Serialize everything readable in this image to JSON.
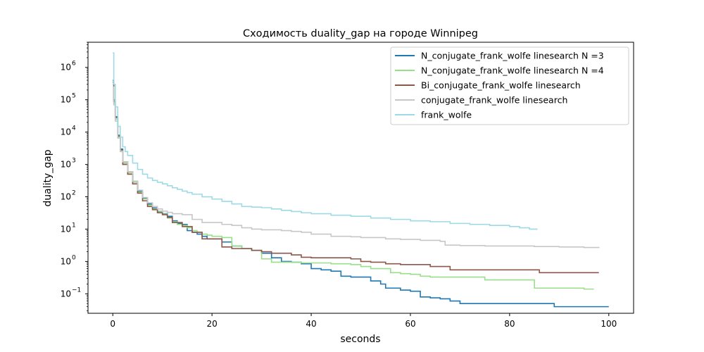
{
  "chart_data": {
    "type": "line",
    "title": "Сходимость duality_gap на городе Winnipeg",
    "xlabel": "seconds",
    "ylabel": "duality_gap",
    "x_scale": "linear",
    "y_scale": "log",
    "xlim": [
      -5,
      105
    ],
    "ylim": [
      0.025,
      6000000
    ],
    "xticks": [
      0,
      20,
      40,
      60,
      80,
      100
    ],
    "yticks": [
      {
        "value": 0.1,
        "mantissa": "10",
        "exp": "−1"
      },
      {
        "value": 1,
        "mantissa": "10",
        "exp": "0"
      },
      {
        "value": 10,
        "mantissa": "10",
        "exp": "1"
      },
      {
        "value": 100,
        "mantissa": "10",
        "exp": "2"
      },
      {
        "value": 1000,
        "mantissa": "10",
        "exp": "3"
      },
      {
        "value": 10000,
        "mantissa": "10",
        "exp": "4"
      },
      {
        "value": 100000,
        "mantissa": "10",
        "exp": "5"
      },
      {
        "value": 1000000,
        "mantissa": "10",
        "exp": "6"
      }
    ],
    "grid": false,
    "legend_position": "top-right",
    "series": [
      {
        "name": "N_conjugate_frank_wolfe linesearch N =3",
        "color": "#1f77b4",
        "x": [
          0,
          0.2,
          0.5,
          1,
          1.5,
          2,
          3,
          4,
          5,
          6,
          7,
          8,
          9,
          10,
          11,
          12,
          13,
          14,
          15,
          16,
          17,
          18,
          19,
          20,
          22,
          24,
          26,
          28,
          30,
          32,
          34,
          36,
          38,
          40,
          42,
          44,
          46,
          48,
          50,
          52,
          54,
          55,
          56,
          58,
          60,
          62,
          64,
          66,
          68,
          70,
          72,
          75,
          80,
          85,
          89,
          92,
          95,
          100
        ],
        "y": [
          400000,
          100000,
          30000,
          8000,
          3000,
          1200,
          600,
          300,
          150,
          90,
          60,
          45,
          35,
          30,
          25,
          18,
          15,
          14,
          9,
          8,
          7,
          6,
          5,
          5,
          4,
          3,
          2.5,
          2.2,
          1.8,
          1.3,
          1.0,
          0.95,
          0.85,
          0.6,
          0.55,
          0.5,
          0.35,
          0.33,
          0.33,
          0.25,
          0.2,
          0.15,
          0.15,
          0.13,
          0.12,
          0.08,
          0.075,
          0.07,
          0.06,
          0.05,
          0.05,
          0.05,
          0.05,
          0.05,
          0.04,
          0.04,
          0.04,
          0.04
        ]
      },
      {
        "name": "N_conjugate_frank_wolfe linesearch N =4",
        "color": "#98df8a",
        "x": [
          0,
          0.2,
          0.5,
          1,
          1.5,
          2,
          3,
          4,
          5,
          6,
          7,
          8,
          9,
          10,
          11,
          12,
          13,
          14,
          15,
          16,
          17,
          18,
          19,
          20,
          22,
          24,
          26,
          28,
          30,
          32,
          34,
          36,
          38,
          40,
          44,
          48,
          50,
          52,
          54,
          56,
          58,
          60,
          62,
          64,
          66,
          68,
          70,
          72,
          75,
          80,
          85,
          90,
          92,
          95,
          97
        ],
        "y": [
          300000,
          80000,
          25000,
          7000,
          2500,
          1100,
          550,
          280,
          140,
          85,
          55,
          42,
          34,
          29,
          22,
          17,
          14,
          13,
          11,
          9,
          8,
          7,
          6.5,
          6,
          5.5,
          3,
          2.5,
          2.2,
          1.2,
          0.95,
          0.95,
          0.95,
          0.9,
          0.9,
          0.85,
          0.8,
          0.7,
          0.6,
          0.6,
          0.45,
          0.42,
          0.4,
          0.35,
          0.33,
          0.33,
          0.33,
          0.33,
          0.33,
          0.27,
          0.27,
          0.15,
          0.15,
          0.15,
          0.14,
          0.14
        ]
      },
      {
        "name": "Bi_conjugate_frank_wolfe linesearch",
        "color": "#8c564b",
        "x": [
          0,
          0.2,
          0.5,
          1,
          1.5,
          2,
          3,
          4,
          5,
          6,
          7,
          8,
          9,
          10,
          11,
          12,
          14,
          16,
          18,
          20,
          22,
          24,
          26,
          28,
          30,
          32,
          34,
          36,
          38,
          40,
          44,
          48,
          50,
          52,
          55,
          58,
          62,
          64,
          66,
          68,
          72,
          75,
          80,
          85,
          86,
          90,
          95,
          98
        ],
        "y": [
          350000,
          90000,
          28000,
          7500,
          2800,
          1000,
          500,
          250,
          130,
          75,
          50,
          40,
          32,
          28,
          23,
          16,
          12,
          8,
          5,
          5,
          2.8,
          2.5,
          2.5,
          2.2,
          2.0,
          1.8,
          1.8,
          1.6,
          1.35,
          1.3,
          1.3,
          1.2,
          1.0,
          0.95,
          0.85,
          0.8,
          0.8,
          0.7,
          0.7,
          0.55,
          0.55,
          0.55,
          0.55,
          0.55,
          0.45,
          0.45,
          0.45,
          0.45
        ]
      },
      {
        "name": "conjugate_frank_wolfe linesearch",
        "color": "#c7c7c7",
        "x": [
          0,
          0.2,
          0.5,
          1,
          1.5,
          2,
          3,
          4,
          5,
          6,
          7,
          8,
          9,
          10,
          11,
          12,
          14,
          16,
          18,
          20,
          22,
          24,
          26,
          28,
          30,
          32,
          34,
          36,
          38,
          40,
          44,
          48,
          50,
          52,
          55,
          58,
          62,
          64,
          66,
          67,
          70,
          75,
          80,
          85,
          90,
          95,
          98
        ],
        "y": [
          250000,
          70000,
          22000,
          6500,
          2600,
          1200,
          600,
          300,
          160,
          95,
          65,
          50,
          42,
          36,
          33,
          30,
          28,
          20,
          16,
          16,
          14,
          13,
          11,
          10,
          9.5,
          9.5,
          9.0,
          8.5,
          8.0,
          7.0,
          6.0,
          5.8,
          5.5,
          5.5,
          5.0,
          4.8,
          4.5,
          4.5,
          4.2,
          3.2,
          3.1,
          3.0,
          3.0,
          2.9,
          2.8,
          2.7,
          2.6
        ]
      },
      {
        "name": "frank_wolfe",
        "color": "#9edae5",
        "x": [
          0,
          0.2,
          0.5,
          1,
          1.5,
          2,
          2.5,
          3,
          4,
          5,
          6,
          7,
          8,
          9,
          10,
          11,
          12,
          13,
          14,
          15,
          16,
          18,
          20,
          22,
          24,
          26,
          28,
          30,
          32,
          34,
          36,
          38,
          40,
          44,
          48,
          52,
          56,
          60,
          64,
          68,
          72,
          76,
          80,
          82,
          84,
          85.5
        ],
        "y": [
          2800000,
          300000,
          60000,
          15000,
          7000,
          3500,
          2500,
          1900,
          1100,
          700,
          500,
          380,
          320,
          280,
          250,
          220,
          190,
          170,
          150,
          135,
          120,
          100,
          85,
          72,
          60,
          50,
          48,
          46,
          42,
          38,
          35,
          32,
          30,
          27,
          25,
          22,
          20,
          18,
          17,
          15,
          14,
          13,
          12,
          11,
          10,
          9.5
        ]
      }
    ]
  }
}
